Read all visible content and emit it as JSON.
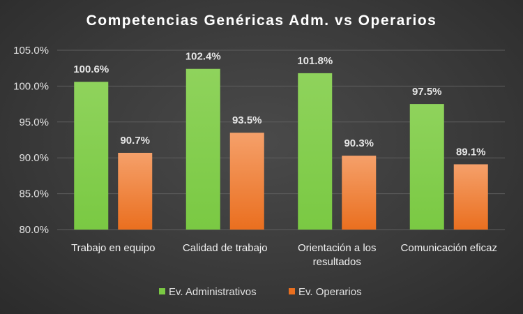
{
  "chart_data": {
    "type": "bar",
    "title": "Competencias Genéricas Adm. vs Operarios",
    "categories": [
      [
        "Trabajo en equipo"
      ],
      [
        "Calidad de trabajo"
      ],
      [
        "Orientación a los",
        "resultados"
      ],
      [
        "Comunicación eficaz"
      ]
    ],
    "series": [
      {
        "name": "Ev. Administrativos",
        "values": [
          100.6,
          102.4,
          101.8,
          97.5
        ],
        "labels": [
          "100.6%",
          "102.4%",
          "101.8%",
          "97.5%"
        ],
        "color_top": "#8fd35c",
        "color_bottom": "#7ac943"
      },
      {
        "name": "Ev. Operarios",
        "values": [
          90.7,
          93.5,
          90.3,
          89.1
        ],
        "labels": [
          "90.7%",
          "93.5%",
          "90.3%",
          "89.1%"
        ],
        "color_top": "#f5a06a",
        "color_bottom": "#ea6f1f"
      }
    ],
    "ylim": [
      80,
      105
    ],
    "yticks": [
      80,
      85,
      90,
      95,
      100,
      105
    ],
    "ytick_labels": [
      "80.0%",
      "85.0%",
      "90.0%",
      "95.0%",
      "100.0%",
      "105.0%"
    ],
    "grid": true,
    "legend": "bottom",
    "xlabel": "",
    "ylabel": ""
  }
}
